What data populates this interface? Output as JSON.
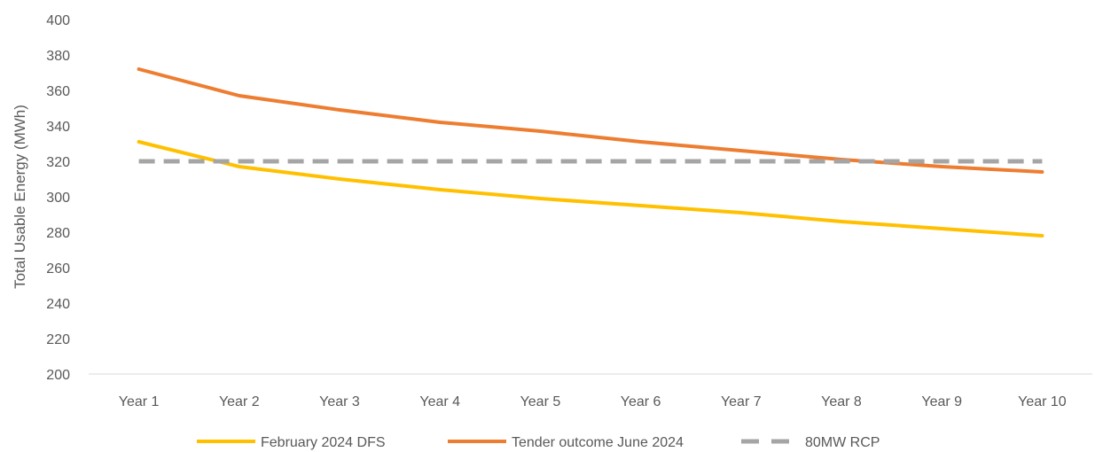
{
  "chart_data": {
    "type": "line",
    "title": "",
    "xlabel": "",
    "ylabel": "Total Usable Energy (MWh)",
    "ylim": [
      200,
      400
    ],
    "yticks": [
      200,
      220,
      240,
      260,
      280,
      300,
      320,
      340,
      360,
      380,
      400
    ],
    "grid": false,
    "legend_position": "bottom",
    "categories": [
      "Year 1",
      "Year 2",
      "Year 3",
      "Year 4",
      "Year 5",
      "Year 6",
      "Year 7",
      "Year 8",
      "Year 9",
      "Year 10"
    ],
    "series": [
      {
        "name": "February 2024 DFS",
        "color": "#FFC000",
        "style": "solid",
        "values": [
          331,
          317,
          310,
          304,
          299,
          295,
          291,
          286,
          282,
          278
        ]
      },
      {
        "name": "Tender outcome June 2024",
        "color": "#ED7D31",
        "style": "solid",
        "values": [
          372,
          357,
          349,
          342,
          337,
          331,
          326,
          321,
          317,
          314
        ]
      },
      {
        "name": "80MW RCP",
        "color": "#A5A5A5",
        "style": "dashed",
        "values": [
          320,
          320,
          320,
          320,
          320,
          320,
          320,
          320,
          320,
          320
        ]
      }
    ]
  }
}
